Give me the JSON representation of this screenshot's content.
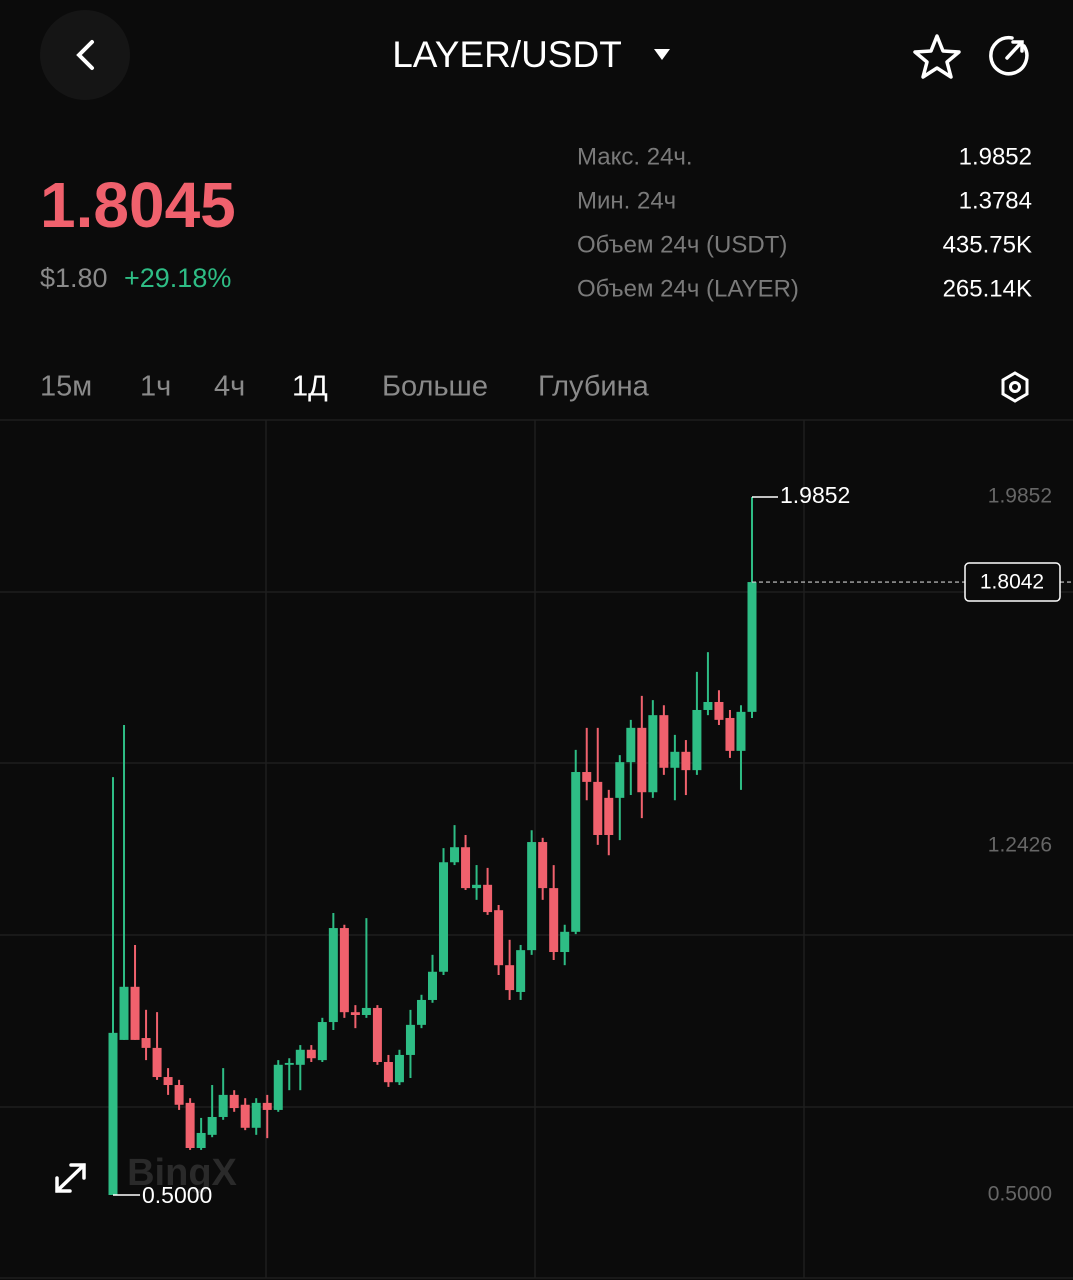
{
  "header": {
    "title": "LAYER/USDT"
  },
  "ticker": {
    "price": "1.8045",
    "usd_price": "$1.80",
    "change": "+29.18%"
  },
  "stats": [
    {
      "label": "Макс. 24ч.",
      "value": "1.9852"
    },
    {
      "label": "Мин. 24ч",
      "value": "1.3784"
    },
    {
      "label": "Объем 24ч (USDT)",
      "value": "435.75K"
    },
    {
      "label": "Объем 24ч (LAYER)",
      "value": "265.14K"
    }
  ],
  "tabs": [
    "15м",
    "1ч",
    "4ч",
    "1Д",
    "Больше",
    "Глубина"
  ],
  "active_tab": "1Д",
  "chart_data": {
    "type": "candlestick",
    "watermark": "BingX",
    "open": [
      0.5,
      0.83,
      0.943,
      0.834,
      0.813,
      0.751,
      0.734,
      0.696,
      0.6,
      0.628,
      0.666,
      0.713,
      0.692,
      0.643,
      0.696,
      0.681,
      0.777,
      0.777,
      0.809,
      0.787,
      0.868,
      1.068,
      0.889,
      0.883,
      0.898,
      0.783,
      0.74,
      0.798,
      0.862,
      0.915,
      0.975,
      1.208,
      1.24,
      1.153,
      1.16,
      1.106,
      0.989,
      0.932,
      1.021,
      1.251,
      1.153,
      1.017,
      1.06,
      1.4,
      1.379,
      1.345,
      1.345,
      1.421,
      1.494,
      1.357,
      1.521,
      1.409,
      1.443,
      1.404,
      1.532,
      1.549,
      1.515,
      1.445,
      1.528
    ],
    "high": [
      1.389,
      1.5,
      1.032,
      0.894,
      0.889,
      0.77,
      0.745,
      0.706,
      0.664,
      0.734,
      0.77,
      0.723,
      0.706,
      0.706,
      0.713,
      0.787,
      0.791,
      0.819,
      0.819,
      0.877,
      1.1,
      1.075,
      0.904,
      1.089,
      0.904,
      0.798,
      0.809,
      0.894,
      0.926,
      1.011,
      1.238,
      1.287,
      1.266,
      1.202,
      1.196,
      1.117,
      1.043,
      1.032,
      1.276,
      1.26,
      1.202,
      1.075,
      1.447,
      1.494,
      1.494,
      1.362,
      1.436,
      1.511,
      1.562,
      1.553,
      1.542,
      1.479,
      1.468,
      1.613,
      1.655,
      1.574,
      1.532,
      1.542,
      1.9852
    ],
    "low": [
      0.5,
      0.83,
      0.83,
      0.787,
      0.745,
      0.713,
      0.681,
      0.596,
      0.596,
      0.623,
      0.66,
      0.677,
      0.638,
      0.628,
      0.621,
      0.677,
      0.723,
      0.723,
      0.783,
      0.783,
      0.851,
      0.877,
      0.855,
      0.877,
      0.777,
      0.73,
      0.734,
      0.749,
      0.855,
      0.909,
      0.968,
      1.202,
      1.149,
      1.128,
      1.096,
      0.968,
      0.915,
      0.915,
      1.011,
      1.128,
      1.0,
      0.989,
      1.055,
      1.34,
      1.245,
      1.223,
      1.255,
      1.351,
      1.302,
      1.345,
      1.394,
      1.34,
      1.351,
      1.394,
      1.521,
      1.5,
      1.43,
      1.362,
      1.515
    ],
    "close": [
      0.845,
      0.943,
      0.83,
      0.813,
      0.751,
      0.734,
      0.692,
      0.6,
      0.632,
      0.666,
      0.713,
      0.685,
      0.643,
      0.696,
      0.681,
      0.777,
      0.781,
      0.809,
      0.791,
      0.868,
      1.068,
      0.889,
      0.883,
      0.898,
      0.783,
      0.74,
      0.798,
      0.862,
      0.915,
      0.975,
      1.208,
      1.24,
      1.153,
      1.16,
      1.102,
      0.989,
      0.936,
      1.021,
      1.251,
      1.153,
      1.017,
      1.06,
      1.4,
      1.379,
      1.266,
      1.266,
      1.421,
      1.494,
      1.357,
      1.521,
      1.409,
      1.443,
      1.404,
      1.532,
      1.549,
      1.511,
      1.445,
      1.528,
      1.8042
    ],
    "up_color": "#2ebd85",
    "down_color": "#f0616d",
    "ylim": [
      0.3234,
      2.149
    ],
    "yticks": [
      1.9852,
      1.2426,
      {
        "value": 0.5,
        "label": "0.5000"
      }
    ],
    "high_label": 1.9852,
    "low_label": {
      "value": 0.5,
      "label": "0.5000"
    },
    "last_price": 1.8042
  }
}
